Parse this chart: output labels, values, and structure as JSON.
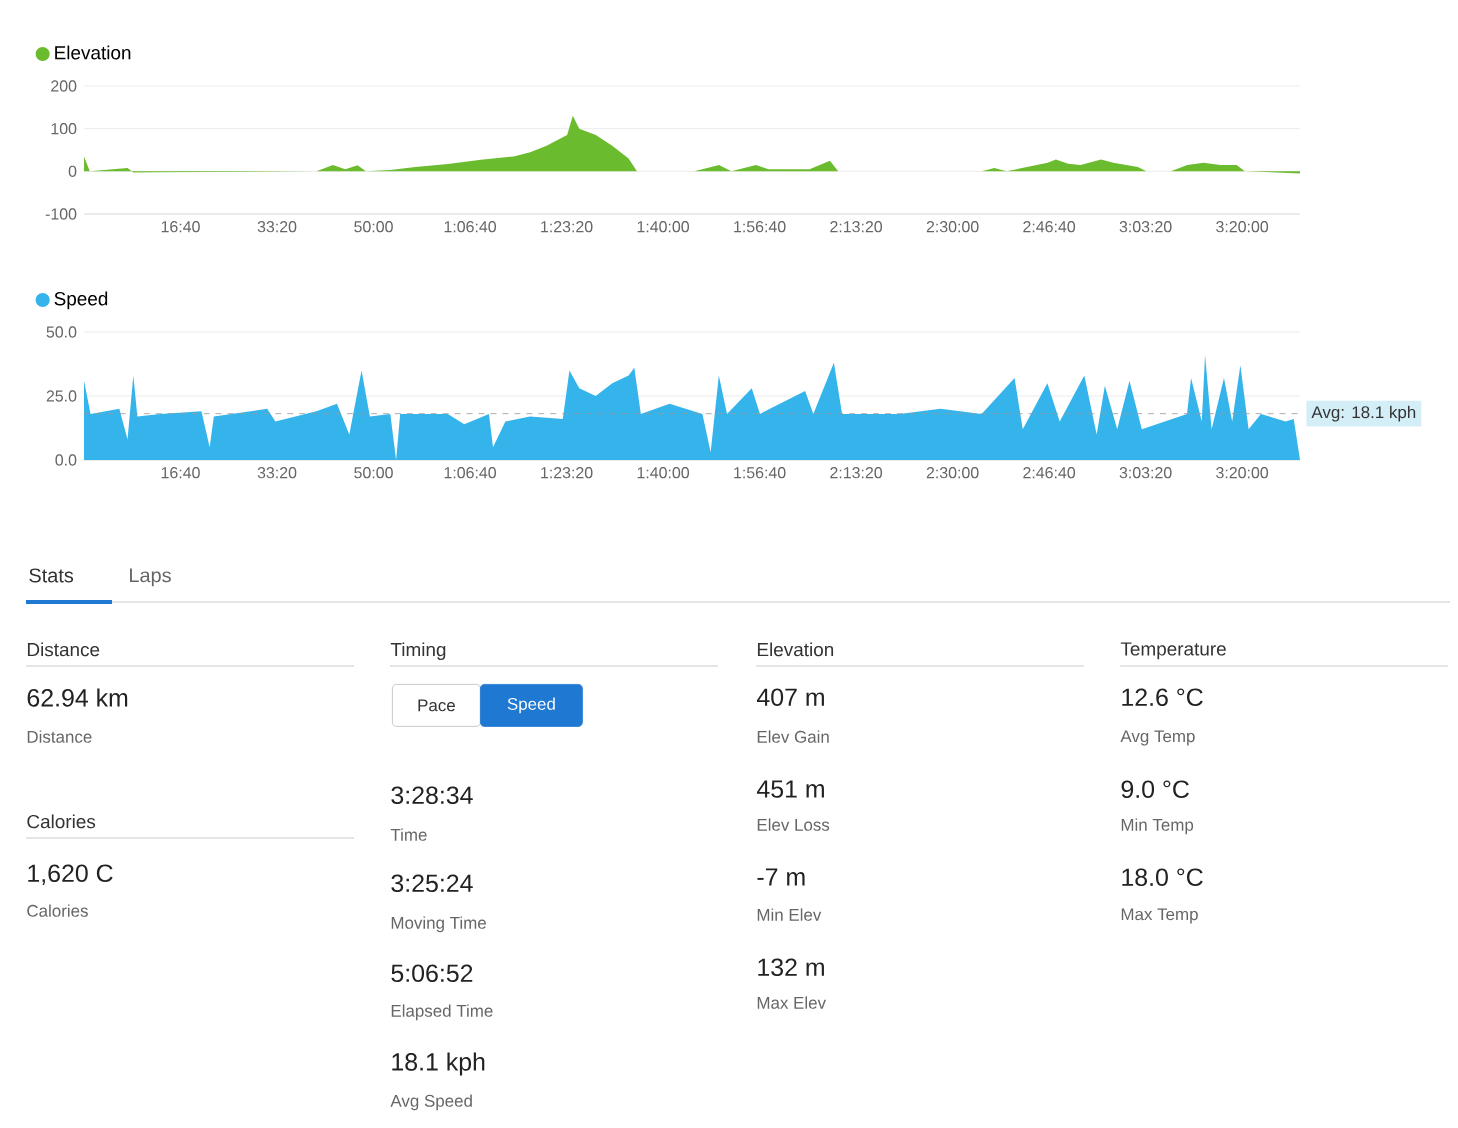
{
  "chart_data": [
    {
      "type": "area",
      "series": [
        {
          "name": "Elevation",
          "color": "#6bbb2f",
          "x": [
            0,
            60,
            451,
            511,
            792,
            2409,
            2579,
            2707,
            2835,
            2920,
            3175,
            3431,
            3771,
            4112,
            4452,
            4623,
            4793,
            5006,
            5065,
            5132,
            5303,
            5473,
            5643,
            5729,
            6324,
            6580,
            6707,
            6963,
            7091,
            7517,
            7729,
            7815,
            9304,
            9432,
            9559,
            9985,
            10070,
            10198,
            10326,
            10538,
            10666,
            10921,
            11007,
            11262,
            11432,
            11602,
            11773,
            11943,
            12028,
            12600
          ],
          "values": [
            35,
            0,
            8,
            -3,
            -2,
            0,
            15,
            5,
            14,
            0,
            3,
            10,
            17,
            27,
            35,
            45,
            60,
            85,
            130,
            100,
            85,
            60,
            30,
            0,
            0,
            15,
            0,
            15,
            5,
            5,
            25,
            0,
            0,
            8,
            0,
            20,
            28,
            18,
            15,
            28,
            20,
            10,
            0,
            0,
            15,
            20,
            15,
            15,
            0,
            -5
          ]
        }
      ],
      "xlim": [
        0,
        12600
      ],
      "xticks": [
        {
          "value": 1000,
          "label": "16:40"
        },
        {
          "value": 2000,
          "label": "33:20"
        },
        {
          "value": 3000,
          "label": "50:00"
        },
        {
          "value": 4000,
          "label": "1:06:40"
        },
        {
          "value": 5000,
          "label": "1:23:20"
        },
        {
          "value": 6000,
          "label": "1:40:00"
        },
        {
          "value": 7000,
          "label": "1:56:40"
        },
        {
          "value": 8000,
          "label": "2:13:20"
        },
        {
          "value": 9000,
          "label": "2:30:00"
        },
        {
          "value": 10000,
          "label": "2:46:40"
        },
        {
          "value": 11000,
          "label": "3:03:20"
        },
        {
          "value": 12000,
          "label": "3:20:00"
        }
      ],
      "ylim": [
        -100,
        200
      ],
      "yticks": [
        -100,
        0,
        100,
        200
      ],
      "grid": "y",
      "legend": "top left"
    },
    {
      "type": "area",
      "series": [
        {
          "name": "Speed",
          "color": "#35b4ec",
          "x": [
            0,
            68,
            366,
            451,
            511,
            553,
            791,
            1217,
            1302,
            1345,
            1898,
            1983,
            2408,
            2621,
            2749,
            2876,
            2962,
            3174,
            3234,
            3276,
            3770,
            3940,
            4196,
            4238,
            4366,
            4621,
            4961,
            5030,
            5132,
            5302,
            5473,
            5643,
            5702,
            5770,
            6068,
            6408,
            6493,
            6578,
            6663,
            6919,
            7004,
            7472,
            7557,
            7770,
            7855,
            8450,
            8876,
            9301,
            9642,
            9727,
            9982,
            10110,
            10365,
            10493,
            10578,
            10706,
            10833,
            10961,
            11429,
            11471,
            11582,
            11616,
            11684,
            11812,
            11897,
            11982,
            12067,
            12195,
            12450,
            12535,
            12600
          ],
          "values": [
            31,
            18,
            20,
            8,
            33,
            17,
            18,
            19,
            5,
            17,
            20,
            15,
            19,
            22,
            10,
            35,
            17,
            18,
            0,
            18,
            18,
            14,
            18,
            5,
            15,
            17,
            16,
            35,
            28,
            25,
            30,
            33,
            36,
            18,
            22,
            18,
            3,
            33,
            18,
            28,
            18,
            27,
            18,
            38,
            18,
            18,
            20,
            18,
            32,
            12,
            30,
            15,
            33,
            10,
            29,
            12,
            31,
            12,
            18,
            32,
            15,
            41,
            12,
            32,
            15,
            37,
            12,
            18,
            15,
            16,
            0
          ]
        }
      ],
      "xlim": [
        0,
        12600
      ],
      "xticks": [
        {
          "value": 1000,
          "label": "16:40"
        },
        {
          "value": 2000,
          "label": "33:20"
        },
        {
          "value": 3000,
          "label": "50:00"
        },
        {
          "value": 4000,
          "label": "1:06:40"
        },
        {
          "value": 5000,
          "label": "1:23:20"
        },
        {
          "value": 6000,
          "label": "1:40:00"
        },
        {
          "value": 7000,
          "label": "1:56:40"
        },
        {
          "value": 8000,
          "label": "2:13:20"
        },
        {
          "value": 9000,
          "label": "2:30:00"
        },
        {
          "value": 10000,
          "label": "2:46:40"
        },
        {
          "value": 11000,
          "label": "3:03:20"
        },
        {
          "value": 12000,
          "label": "3:20:00"
        }
      ],
      "ylim": [
        0,
        50
      ],
      "yticks": [
        {
          "value": 0,
          "label": "0.0"
        },
        {
          "value": 25,
          "label": "25.0"
        },
        {
          "value": 50,
          "label": "50.0"
        }
      ],
      "grid": "y",
      "legend": "top left",
      "ref_lines": [
        {
          "axis": "y",
          "value": 18.1,
          "label": "Avg: 18.1 kph",
          "color": "#999999",
          "line_style": "dashed"
        }
      ]
    },
    {
      "type": "other",
      "annotations": [
        "Stats",
        "Laps",
        "Distance",
        "62.94 km",
        "Distance",
        "Calories",
        "1,620 C",
        "Calories",
        "Timing",
        "Pace",
        "Speed",
        "3:28:34",
        "Time",
        "3:25:24",
        "Moving Time",
        "5:06:52",
        "Elapsed Time",
        "18.1 kph",
        "Avg Speed",
        "Elevation",
        "407 m",
        "Elev Gain",
        "451 m",
        "Elev Loss",
        "-7 m",
        "Min Elev",
        "132 m",
        "Max Elev",
        "Temperature",
        "12.6 °C",
        "Avg Temp",
        "9.0 °C",
        "Min Temp",
        "18.0 °C",
        "Max Temp"
      ]
    }
  ]
}
